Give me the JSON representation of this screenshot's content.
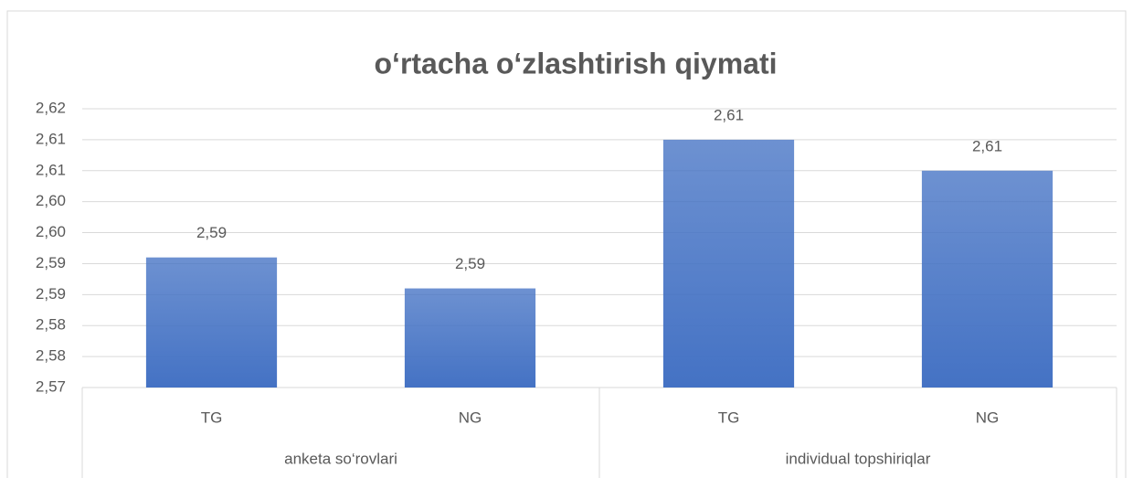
{
  "chart_data": {
    "type": "bar",
    "title": "o‘rtacha o‘zlashtirish qiymati",
    "categories": [
      "TG",
      "NG",
      "TG",
      "NG"
    ],
    "groups": [
      "anketa so‘rovlari",
      "individual topshiriqlar"
    ],
    "values": [
      2.591,
      2.586,
      2.61,
      2.605
    ],
    "value_labels": [
      "2,59",
      "2,59",
      "2,61",
      "2,61"
    ],
    "color": "#4472c4",
    "ylim": [
      2.57,
      2.615
    ],
    "yticks": [
      {
        "value": 2.57,
        "label": "2,57"
      },
      {
        "value": 2.575,
        "label": "2,58"
      },
      {
        "value": 2.58,
        "label": "2,58"
      },
      {
        "value": 2.585,
        "label": "2,59"
      },
      {
        "value": 2.59,
        "label": "2,59"
      },
      {
        "value": 2.595,
        "label": "2,60"
      },
      {
        "value": 2.6,
        "label": "2,60"
      },
      {
        "value": 2.605,
        "label": "2,61"
      },
      {
        "value": 2.61,
        "label": "2,61"
      },
      {
        "value": 2.615,
        "label": "2,62"
      }
    ],
    "grid": true
  }
}
